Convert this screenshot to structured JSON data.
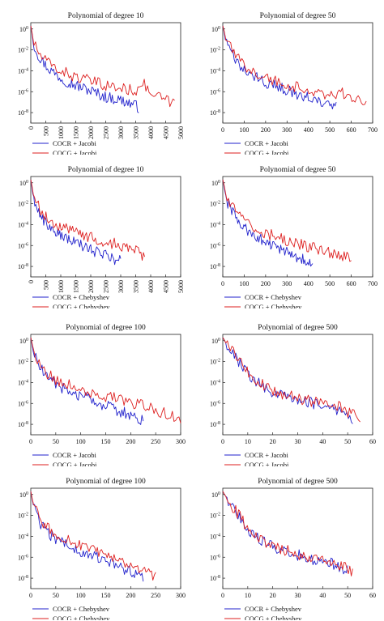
{
  "colors": {
    "blue": "#2222cc",
    "red": "#dd1f1f"
  },
  "chart_data": [
    {
      "type": "line",
      "title": "Polynomial of degree 10",
      "xlim": [
        0,
        5000
      ],
      "xticks": [
        0,
        500,
        1000,
        1500,
        2000,
        2500,
        3000,
        3500,
        4000,
        4500,
        5000
      ],
      "x_tick_rotation": -90,
      "ylim_log10": [
        -9,
        0.6
      ],
      "yticks": [
        "10-8",
        "10-6",
        "10-4",
        "10-2",
        "100"
      ],
      "legend": {
        "placement": "below"
      },
      "series": [
        {
          "name": "COCR + Jacobi",
          "color": "blue",
          "x": [
            0,
            100,
            300,
            600,
            1000,
            1500,
            2000,
            2500,
            3000,
            3400,
            3600
          ],
          "y_log10": [
            0.3,
            -1.5,
            -2.8,
            -3.8,
            -4.7,
            -5.4,
            -5.9,
            -6.5,
            -6.8,
            -7.2,
            -7.5
          ]
        },
        {
          "name": "COCG + Jacobi",
          "color": "red",
          "x": [
            0,
            100,
            300,
            600,
            1000,
            1500,
            2000,
            2500,
            3000,
            3500,
            3700,
            4000,
            4500,
            4800
          ],
          "y_log10": [
            0.3,
            -1.3,
            -2.5,
            -3.3,
            -4.0,
            -4.6,
            -5.0,
            -5.4,
            -5.7,
            -5.9,
            -5.0,
            -6.2,
            -6.8,
            -7.2
          ]
        }
      ]
    },
    {
      "type": "line",
      "title": "Polynomial of degree 50",
      "xlim": [
        0,
        700
      ],
      "xticks": [
        0,
        100,
        200,
        300,
        400,
        500,
        600,
        700
      ],
      "ylim_log10": [
        -9,
        0.6
      ],
      "yticks": [
        "10-8",
        "10-6",
        "10-4",
        "10-2",
        "100"
      ],
      "legend": {
        "placement": "below"
      },
      "series": [
        {
          "name": "COCR + Jacobi",
          "color": "blue",
          "x": [
            0,
            20,
            60,
            100,
            150,
            200,
            250,
            300,
            350,
            400,
            450,
            500,
            530
          ],
          "y_log10": [
            0.3,
            -1.6,
            -3.0,
            -4.0,
            -4.6,
            -5.1,
            -5.5,
            -5.9,
            -6.2,
            -6.6,
            -7.0,
            -7.3,
            -7.4
          ]
        },
        {
          "name": "COCG + Jacobi",
          "color": "red",
          "x": [
            0,
            20,
            60,
            100,
            150,
            200,
            250,
            300,
            350,
            400,
            450,
            500,
            550,
            600,
            650,
            670
          ],
          "y_log10": [
            0.3,
            -1.3,
            -2.6,
            -3.5,
            -4.1,
            -4.6,
            -5.0,
            -5.3,
            -5.6,
            -5.9,
            -6.1,
            -6.3,
            -6.1,
            -6.6,
            -7.0,
            -7.1
          ]
        }
      ]
    },
    {
      "type": "line",
      "title": "Polynomial of degree 10",
      "xlim": [
        0,
        5000
      ],
      "xticks": [
        0,
        500,
        1000,
        1500,
        2000,
        2500,
        3000,
        3500,
        4000,
        4500,
        5000
      ],
      "x_tick_rotation": -90,
      "ylim_log10": [
        -9,
        0.6
      ],
      "yticks": [
        "10-8",
        "10-6",
        "10-4",
        "10-2",
        "100"
      ],
      "legend": {
        "placement": "below"
      },
      "series": [
        {
          "name": "COCR + Chebyshev",
          "color": "blue",
          "x": [
            0,
            100,
            300,
            600,
            1000,
            1500,
            2000,
            2500,
            2800,
            3000
          ],
          "y_log10": [
            0.3,
            -1.5,
            -3.0,
            -4.2,
            -5.0,
            -5.8,
            -6.4,
            -6.9,
            -7.3,
            -7.5
          ]
        },
        {
          "name": "COCG + Chebyshev",
          "color": "red",
          "x": [
            0,
            100,
            300,
            600,
            1000,
            1500,
            2000,
            2500,
            3000,
            3500,
            3800
          ],
          "y_log10": [
            0.3,
            -1.2,
            -2.6,
            -3.5,
            -4.2,
            -4.8,
            -5.2,
            -5.6,
            -6.0,
            -6.5,
            -7.1
          ]
        }
      ]
    },
    {
      "type": "line",
      "title": "Polynomial of degree 50",
      "xlim": [
        0,
        700
      ],
      "xticks": [
        0,
        100,
        200,
        300,
        400,
        500,
        600,
        700
      ],
      "ylim_log10": [
        -9,
        0.6
      ],
      "yticks": [
        "10-8",
        "10-6",
        "10-4",
        "10-2",
        "100"
      ],
      "legend": {
        "placement": "below"
      },
      "series": [
        {
          "name": "COCR + Chebyshev",
          "color": "blue",
          "x": [
            0,
            20,
            60,
            100,
            150,
            200,
            250,
            300,
            350,
            400,
            420
          ],
          "y_log10": [
            0.3,
            -1.8,
            -3.3,
            -4.3,
            -5.1,
            -5.7,
            -6.2,
            -6.7,
            -7.1,
            -7.6,
            -7.8
          ]
        },
        {
          "name": "COCG + Chebyshev",
          "color": "red",
          "x": [
            0,
            20,
            60,
            100,
            150,
            200,
            250,
            300,
            350,
            400,
            450,
            500,
            550,
            600
          ],
          "y_log10": [
            0.3,
            -1.5,
            -2.8,
            -3.7,
            -4.3,
            -4.8,
            -5.2,
            -5.5,
            -5.8,
            -6.1,
            -6.4,
            -6.7,
            -7.0,
            -7.3
          ]
        }
      ]
    },
    {
      "type": "line",
      "title": "Polynomial of degree 100",
      "xlim": [
        0,
        300
      ],
      "xticks": [
        0,
        50,
        100,
        150,
        200,
        250,
        300
      ],
      "ylim_log10": [
        -9,
        0.6
      ],
      "yticks": [
        "10-8",
        "10-6",
        "10-4",
        "10-2",
        "100"
      ],
      "legend": {
        "placement": "below"
      },
      "series": [
        {
          "name": "COCR + Jacobi",
          "color": "blue",
          "x": [
            0,
            5,
            15,
            30,
            50,
            75,
            100,
            125,
            150,
            175,
            200,
            225
          ],
          "y_log10": [
            0.3,
            -1.0,
            -2.3,
            -3.4,
            -4.2,
            -4.8,
            -5.3,
            -5.8,
            -6.2,
            -6.7,
            -7.1,
            -7.6
          ]
        },
        {
          "name": "COCG + Jacobi",
          "color": "red",
          "x": [
            0,
            5,
            15,
            30,
            50,
            75,
            100,
            125,
            150,
            175,
            200,
            225,
            250,
            275,
            300
          ],
          "y_log10": [
            0.3,
            -0.8,
            -2.0,
            -3.0,
            -3.7,
            -4.2,
            -4.6,
            -5.0,
            -5.3,
            -5.6,
            -5.9,
            -6.2,
            -6.6,
            -7.1,
            -7.6
          ]
        }
      ]
    },
    {
      "type": "line",
      "title": "Polynomial of degree 500",
      "xlim": [
        0,
        60
      ],
      "xticks": [
        0,
        10,
        20,
        30,
        40,
        50,
        60
      ],
      "ylim_log10": [
        -9,
        0.6
      ],
      "yticks": [
        "10-8",
        "10-6",
        "10-4",
        "10-2",
        "100"
      ],
      "legend": {
        "placement": "below"
      },
      "series": [
        {
          "name": "COCR + Jacobi",
          "color": "blue",
          "x": [
            0,
            2,
            5,
            8,
            10,
            12,
            15,
            18,
            20,
            25,
            30,
            35,
            40,
            45,
            48,
            50,
            52
          ],
          "y_log10": [
            0.3,
            -0.5,
            -1.5,
            -2.5,
            -3.2,
            -3.7,
            -4.2,
            -4.6,
            -4.9,
            -5.3,
            -5.6,
            -5.9,
            -6.2,
            -6.5,
            -6.8,
            -7.3,
            -7.7
          ]
        },
        {
          "name": "COCG + Jacobi",
          "color": "red",
          "x": [
            0,
            2,
            5,
            8,
            10,
            12,
            15,
            18,
            20,
            25,
            30,
            35,
            40,
            45,
            48,
            50,
            52,
            55
          ],
          "y_log10": [
            0.3,
            -0.5,
            -1.4,
            -2.4,
            -3.1,
            -3.6,
            -4.1,
            -4.5,
            -4.8,
            -5.2,
            -5.5,
            -5.8,
            -6.0,
            -6.2,
            -6.5,
            -6.8,
            -7.1,
            -7.3
          ]
        }
      ]
    },
    {
      "type": "line",
      "title": "Polynomial of degree 100",
      "xlim": [
        0,
        300
      ],
      "xticks": [
        0,
        50,
        100,
        150,
        200,
        250,
        300
      ],
      "ylim_log10": [
        -9,
        0.6
      ],
      "yticks": [
        "10-8",
        "10-6",
        "10-4",
        "10-2",
        "100"
      ],
      "legend": {
        "placement": "below"
      },
      "series": [
        {
          "name": "COCR + Chebyshev",
          "color": "blue",
          "x": [
            0,
            5,
            15,
            30,
            50,
            75,
            100,
            125,
            150,
            175,
            200,
            225
          ],
          "y_log10": [
            0.3,
            -1.0,
            -2.4,
            -3.5,
            -4.3,
            -4.9,
            -5.4,
            -5.9,
            -6.4,
            -6.9,
            -7.4,
            -7.9
          ]
        },
        {
          "name": "COCG + Chebyshev",
          "color": "red",
          "x": [
            0,
            5,
            15,
            30,
            50,
            75,
            100,
            125,
            150,
            175,
            200,
            225,
            250
          ],
          "y_log10": [
            0.3,
            -0.9,
            -2.1,
            -3.1,
            -3.8,
            -4.4,
            -4.9,
            -5.4,
            -5.9,
            -6.4,
            -6.9,
            -7.4,
            -7.9
          ]
        }
      ]
    },
    {
      "type": "line",
      "title": "Polynomial of degree 500",
      "xlim": [
        0,
        60
      ],
      "xticks": [
        0,
        10,
        20,
        30,
        40,
        50,
        60
      ],
      "ylim_log10": [
        -9,
        0.6
      ],
      "yticks": [
        "10-8",
        "10-6",
        "10-4",
        "10-2",
        "100"
      ],
      "legend": {
        "placement": "below"
      },
      "series": [
        {
          "name": "COCR + Chebyshev",
          "color": "blue",
          "x": [
            0,
            2,
            5,
            8,
            10,
            12,
            15,
            18,
            20,
            25,
            30,
            35,
            40,
            45,
            48,
            50
          ],
          "y_log10": [
            0.3,
            -0.6,
            -1.6,
            -2.6,
            -3.3,
            -3.8,
            -4.3,
            -4.7,
            -5.0,
            -5.4,
            -5.8,
            -6.1,
            -6.4,
            -6.7,
            -7.0,
            -7.3
          ]
        },
        {
          "name": "COCG + Chebyshev",
          "color": "red",
          "x": [
            0,
            2,
            5,
            8,
            10,
            12,
            15,
            18,
            20,
            25,
            30,
            35,
            40,
            45,
            48,
            50,
            52
          ],
          "y_log10": [
            0.3,
            -0.6,
            -1.5,
            -2.5,
            -3.2,
            -3.7,
            -4.2,
            -4.6,
            -4.9,
            -5.3,
            -5.7,
            -6.0,
            -6.3,
            -6.6,
            -6.9,
            -7.2,
            -7.4
          ]
        }
      ]
    }
  ]
}
